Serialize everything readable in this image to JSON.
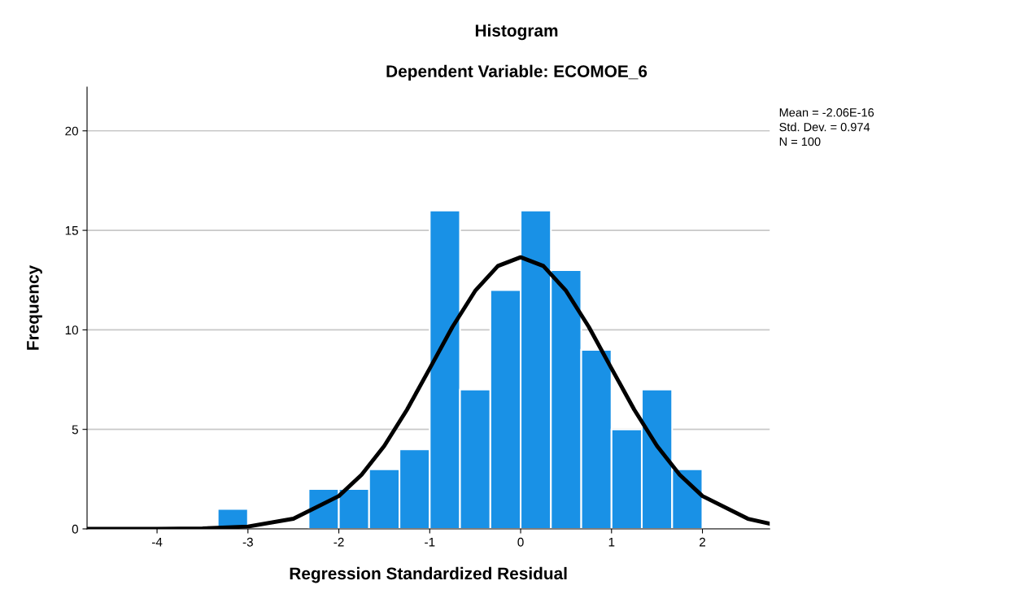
{
  "chart_data": {
    "type": "histogram",
    "title": "Histogram",
    "subtitle": "Dependent Variable: ECOMOE_6",
    "xlabel": "Regression Standardized Residual",
    "ylabel": "Frequency",
    "bins": [
      -3.333,
      -3,
      -2.667,
      -2.333,
      -2,
      -1.667,
      -1.333,
      -1,
      -0.667,
      -0.333,
      0,
      0.333,
      0.667,
      1,
      1.333,
      1.667,
      2
    ],
    "values": [
      1,
      0,
      0,
      2,
      2,
      3,
      4,
      16,
      7,
      12,
      16,
      13,
      9,
      5,
      7,
      3
    ],
    "color": "#1991e6",
    "series": [
      {
        "type": "line",
        "color": "#000000",
        "x": [
          -4.77,
          -4.5,
          -4,
          -3.5,
          -3,
          -2.5,
          -2,
          -1.75,
          -1.5,
          -1.25,
          -1,
          -0.75,
          -0.5,
          -0.25,
          0,
          0.25,
          0.5,
          0.75,
          1,
          1.25,
          1.5,
          1.75,
          2,
          2.5,
          2.74
        ],
        "values": [
          0,
          0,
          0,
          0.02,
          0.12,
          0.51,
          1.65,
          2.72,
          4.17,
          5.99,
          8.06,
          10.15,
          11.96,
          13.21,
          13.65,
          13.21,
          11.96,
          10.15,
          8.06,
          5.99,
          4.17,
          2.72,
          1.65,
          0.51,
          0.26
        ]
      }
    ],
    "xlim": [
      -4.77,
      2.74
    ],
    "ylim": [
      0,
      22.2
    ],
    "xticks": [
      -4,
      -3,
      -2,
      -1,
      0,
      1,
      2
    ],
    "yticks": [
      0,
      5,
      10,
      15,
      20
    ],
    "grid": "y",
    "annotations": [
      "Mean = -2.06E-16",
      "Std. Dev. = 0.974",
      "N = 100"
    ]
  }
}
